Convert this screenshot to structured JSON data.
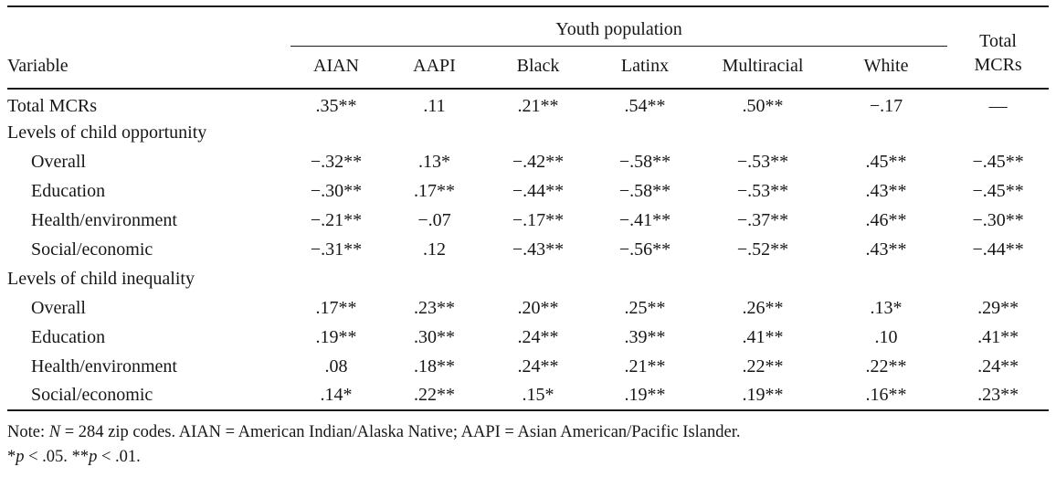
{
  "table": {
    "header": {
      "variable": "Variable",
      "spanner": "Youth population",
      "total_line1": "Total",
      "total_line2": "MCRs",
      "columns": [
        "AIAN",
        "AAPI",
        "Black",
        "Latinx",
        "Multiracial",
        "White"
      ]
    },
    "rows": [
      {
        "label": "Total MCRs",
        "indent": false,
        "section": false,
        "values": [
          ".35**",
          ".11",
          ".21**",
          ".54**",
          ".50**",
          "−.17",
          "—"
        ]
      },
      {
        "label": "Levels of child opportunity",
        "indent": false,
        "section": true,
        "values": [
          "",
          "",
          "",
          "",
          "",
          "",
          ""
        ]
      },
      {
        "label": "Overall",
        "indent": true,
        "section": false,
        "values": [
          "−.32**",
          ".13*",
          "−.42**",
          "−.58**",
          "−.53**",
          ".45**",
          "−.45**"
        ]
      },
      {
        "label": "Education",
        "indent": true,
        "section": false,
        "values": [
          "−.30**",
          ".17**",
          "−.44**",
          "−.58**",
          "−.53**",
          ".43**",
          "−.45**"
        ]
      },
      {
        "label": "Health/environment",
        "indent": true,
        "section": false,
        "values": [
          "−.21**",
          "−.07",
          "−.17**",
          "−.41**",
          "−.37**",
          ".46**",
          "−.30**"
        ]
      },
      {
        "label": "Social/economic",
        "indent": true,
        "section": false,
        "values": [
          "−.31**",
          ".12",
          "−.43**",
          "−.56**",
          "−.52**",
          ".43**",
          "−.44**"
        ]
      },
      {
        "label": "Levels of child inequality",
        "indent": false,
        "section": true,
        "values": [
          "",
          "",
          "",
          "",
          "",
          "",
          ""
        ]
      },
      {
        "label": "Overall",
        "indent": true,
        "section": false,
        "values": [
          ".17**",
          ".23**",
          ".20**",
          ".25**",
          ".26**",
          ".13*",
          ".29**"
        ]
      },
      {
        "label": "Education",
        "indent": true,
        "section": false,
        "values": [
          ".19**",
          ".30**",
          ".24**",
          ".39**",
          ".41**",
          ".10",
          ".41**"
        ]
      },
      {
        "label": "Health/environment",
        "indent": true,
        "section": false,
        "values": [
          ".08",
          ".18**",
          ".24**",
          ".21**",
          ".22**",
          ".22**",
          ".24**"
        ]
      },
      {
        "label": "Social/economic",
        "indent": true,
        "section": false,
        "values": [
          ".14*",
          ".22**",
          ".15*",
          ".19**",
          ".19**",
          ".16**",
          ".23**"
        ]
      }
    ]
  },
  "notes": {
    "note_prefix": "Note: ",
    "n_symbol": "N",
    "note_rest": " = 284 zip codes. AIAN = American Indian/Alaska Native; AAPI = Asian American/Pacific Islander.",
    "sig1_star": "*",
    "sig1_p": "p",
    "sig1_rest": " < .05. ",
    "sig2_star": "**",
    "sig2_p": "p",
    "sig2_rest": " < .01."
  }
}
